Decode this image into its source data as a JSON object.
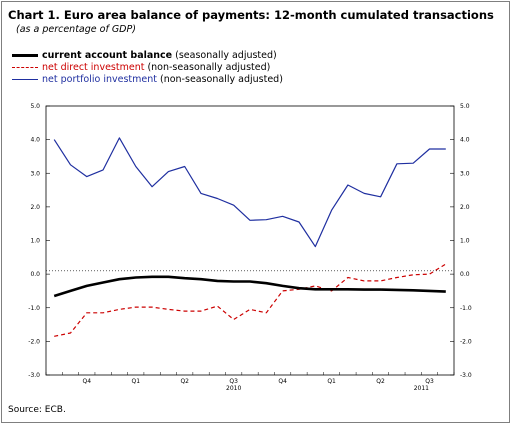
{
  "title": "Chart 1. Euro area balance of payments: 12-month cumulated transactions",
  "subtitle": "(as a percentage of GDP)",
  "legend": [
    {
      "name": "current account balance",
      "note": "(seasonally adjusted)",
      "bold": true,
      "color": "#000000",
      "dash": "solid"
    },
    {
      "name": "net direct investment",
      "note": "(non-seasonally adjusted)",
      "bold": false,
      "color": "#cc0000",
      "dash": "dashed"
    },
    {
      "name": "net portfolio investment",
      "note": "(non-seasonally adjusted)",
      "bold": false,
      "color": "#1f2fa0",
      "dash": "solid"
    }
  ],
  "source": "Source: ECB.",
  "chart_data": {
    "type": "line",
    "x_count": 25,
    "y_ticks": [
      "5.0",
      "4.0",
      "3.0",
      "2.0",
      "1.0",
      "0.0",
      "-1.0",
      "-2.0",
      "-3.0"
    ],
    "ylim": [
      -3,
      5
    ],
    "quarter_labels": [
      {
        "label": "Q4",
        "index": 2
      },
      {
        "label": "Q1",
        "index": 5
      },
      {
        "label": "Q2",
        "index": 8
      },
      {
        "label": "Q3",
        "index": 11
      },
      {
        "label": "Q4",
        "index": 14
      },
      {
        "label": "Q1",
        "index": 17
      },
      {
        "label": "Q2",
        "index": 20
      },
      {
        "label": "Q3",
        "index": 23
      }
    ],
    "year_labels": [
      {
        "label": "2010",
        "index": 11
      },
      {
        "label": "2011",
        "index": 22.5
      }
    ],
    "reference_line": 0.1,
    "series": [
      {
        "name": "current account balance",
        "color": "#000000",
        "width": 2.6,
        "dash": "",
        "values": [
          -0.65,
          -0.5,
          -0.35,
          -0.25,
          -0.15,
          -0.1,
          -0.08,
          -0.08,
          -0.12,
          -0.15,
          -0.2,
          -0.22,
          -0.22,
          -0.27,
          -0.35,
          -0.42,
          -0.45,
          -0.45,
          -0.45,
          -0.46,
          -0.46,
          -0.47,
          -0.48,
          -0.5,
          -0.52
        ]
      },
      {
        "name": "net direct investment",
        "color": "#cc0000",
        "width": 1.2,
        "dash": "4,3",
        "values": [
          -1.85,
          -1.75,
          -1.15,
          -1.15,
          -1.05,
          -0.98,
          -0.98,
          -1.05,
          -1.1,
          -1.1,
          -0.95,
          -1.35,
          -1.05,
          -1.15,
          -0.5,
          -0.45,
          -0.35,
          -0.5,
          -0.1,
          -0.2,
          -0.2,
          -0.1,
          -0.02,
          0.0,
          0.3
        ]
      },
      {
        "name": "net portfolio investment",
        "color": "#1f2fa0",
        "width": 1.2,
        "dash": "",
        "values": [
          4.0,
          3.25,
          2.9,
          3.1,
          4.05,
          3.2,
          2.6,
          3.05,
          3.2,
          2.4,
          2.25,
          2.05,
          1.6,
          1.62,
          1.72,
          1.55,
          0.82,
          1.9,
          2.65,
          2.4,
          2.3,
          3.28,
          3.3,
          3.72,
          3.72
        ]
      }
    ]
  }
}
